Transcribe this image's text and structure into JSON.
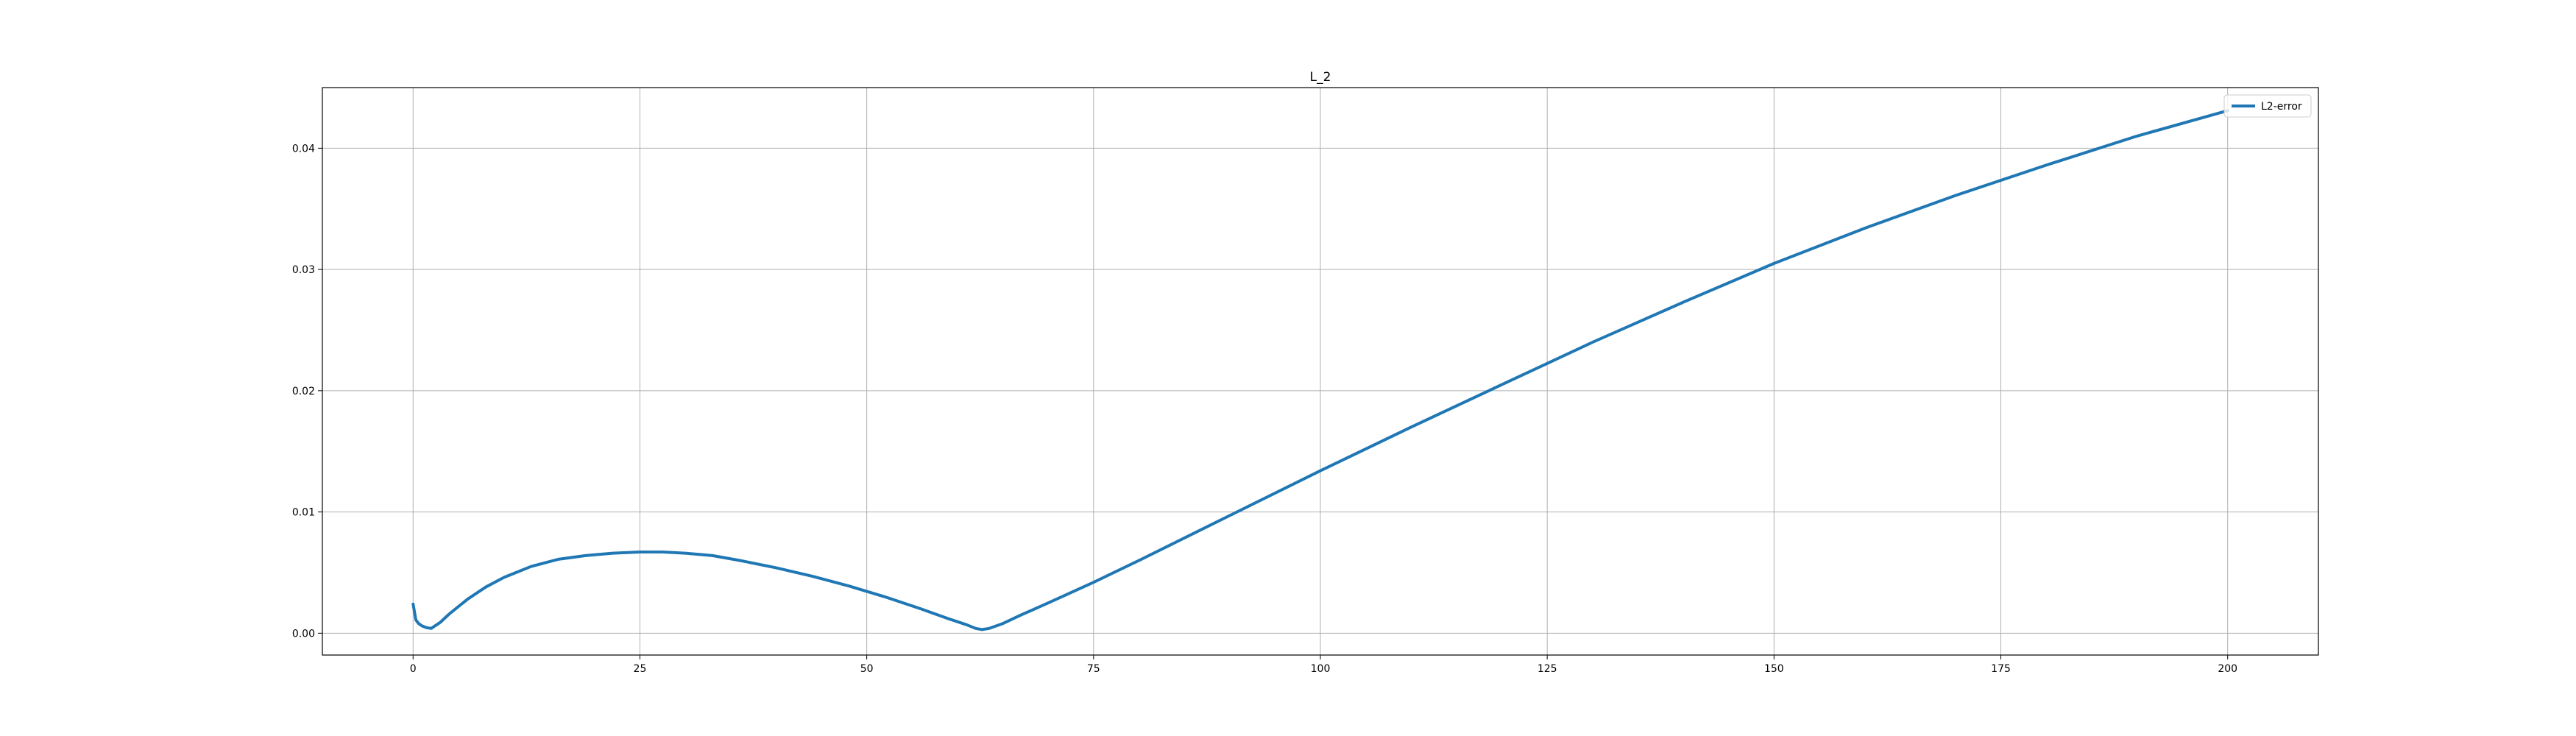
{
  "chart_data": {
    "type": "line",
    "title": "L_2",
    "xlabel": "",
    "ylabel": "",
    "xlim": [
      -10,
      210
    ],
    "ylim": [
      -0.0018,
      0.045
    ],
    "xticks": [
      0,
      25,
      50,
      75,
      100,
      125,
      150,
      175,
      200
    ],
    "xtick_labels": [
      "0",
      "25",
      "50",
      "75",
      "100",
      "125",
      "150",
      "175",
      "200"
    ],
    "yticks": [
      0.0,
      0.01,
      0.02,
      0.03,
      0.04
    ],
    "ytick_labels": [
      "0.00",
      "0.01",
      "0.02",
      "0.03",
      "0.04"
    ],
    "grid": true,
    "legend_position": "top-right",
    "series": [
      {
        "name": "L2-error",
        "color": "#1f77b4",
        "x": [
          0,
          0.3,
          0.6,
          1,
          1.5,
          2,
          3,
          4,
          6,
          8,
          10,
          13,
          16,
          19,
          22,
          25,
          27.5,
          30,
          33,
          36,
          40,
          44,
          48,
          52,
          56,
          59,
          61,
          62,
          62.7,
          63.5,
          65,
          67,
          70,
          75,
          80,
          90,
          100,
          110,
          120,
          130,
          140,
          150,
          160,
          170,
          180,
          190,
          200
        ],
        "y": [
          0.0024,
          0.0011,
          0.0008,
          0.0006,
          0.00045,
          0.0004,
          0.0009,
          0.0016,
          0.0028,
          0.0038,
          0.0046,
          0.0055,
          0.0061,
          0.0064,
          0.0066,
          0.0067,
          0.0067,
          0.0066,
          0.0064,
          0.006,
          0.0054,
          0.0047,
          0.0039,
          0.003,
          0.002,
          0.0012,
          0.0007,
          0.0004,
          0.0003,
          0.0004,
          0.0008,
          0.0015,
          0.0025,
          0.0042,
          0.006,
          0.0097,
          0.0134,
          0.017,
          0.0205,
          0.024,
          0.0273,
          0.0305,
          0.0334,
          0.0361,
          0.0386,
          0.041,
          0.0431
        ]
      }
    ]
  }
}
